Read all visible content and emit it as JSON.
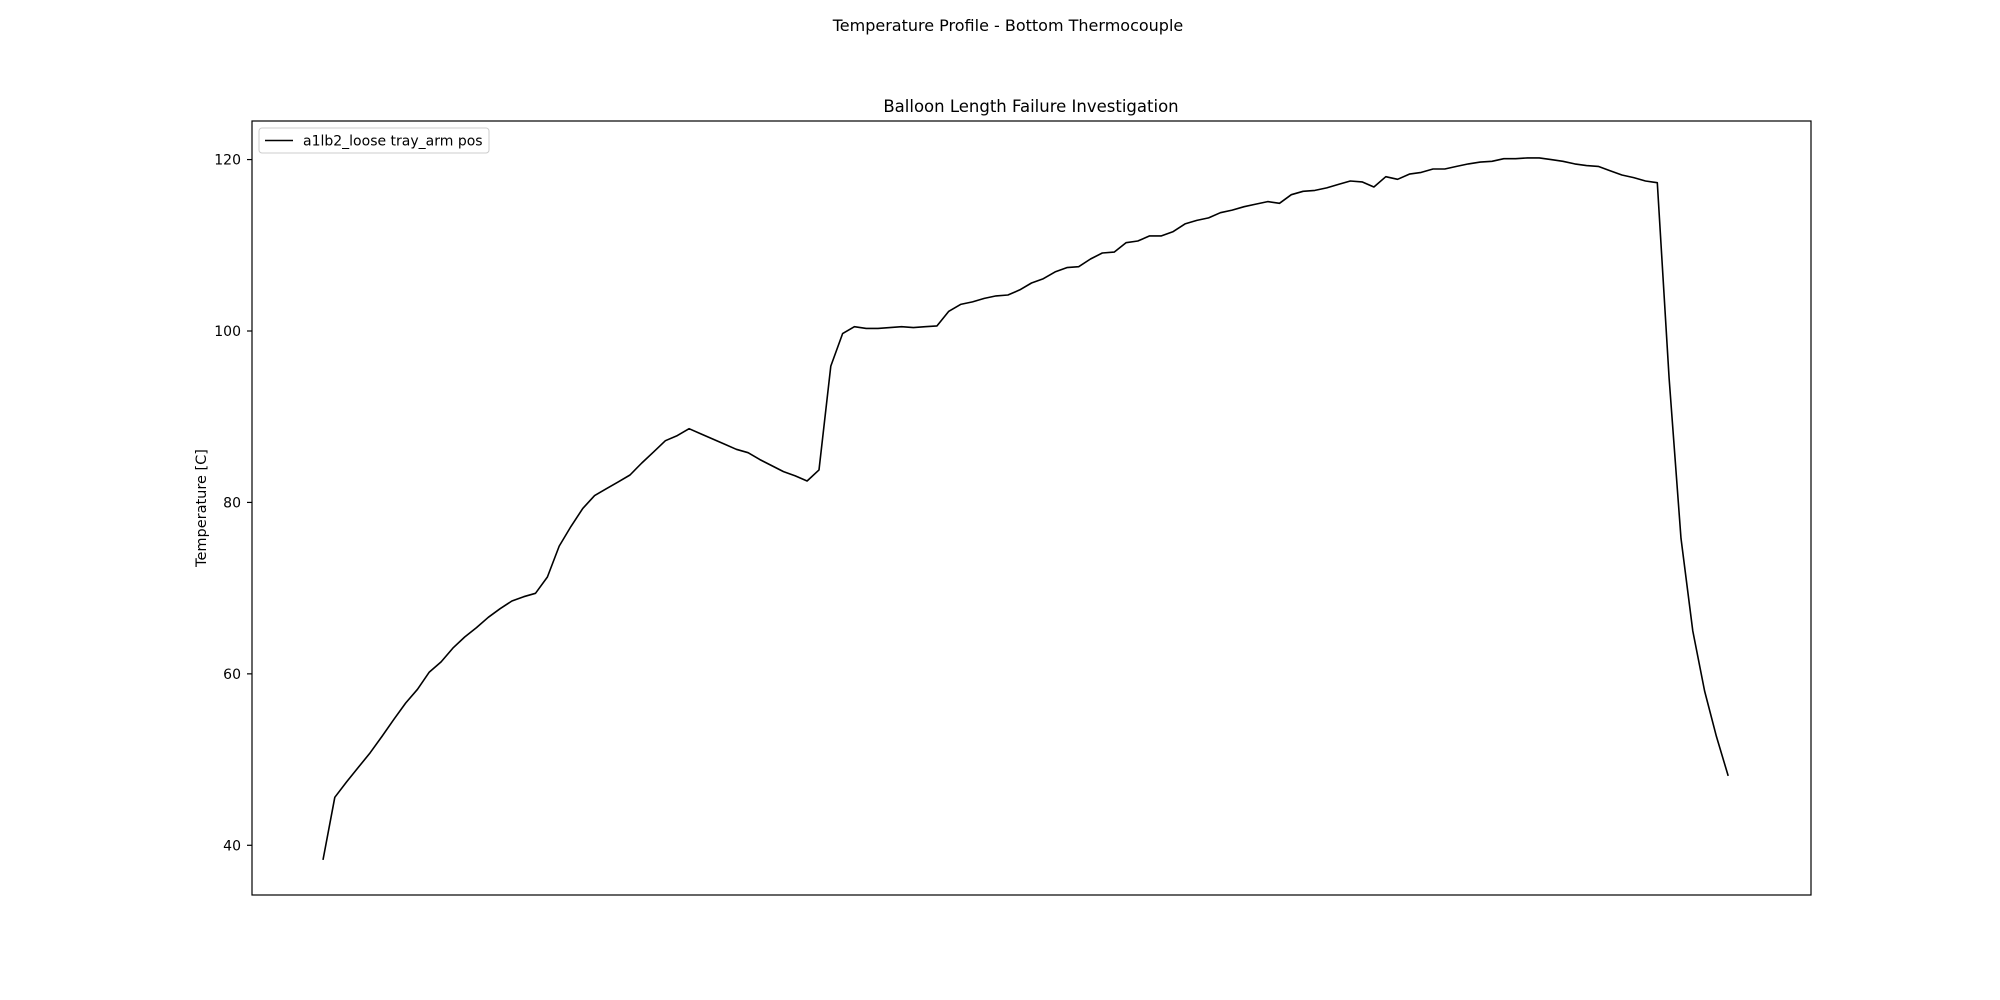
{
  "figure": {
    "suptitle": "Temperature Profile - Bottom Thermocouple"
  },
  "chart_data": {
    "type": "line",
    "title": "Balloon Length Failure Investigation",
    "xlabel": "",
    "ylabel": "Temperature [C]",
    "xticks_visible": false,
    "ylim": [
      34.2,
      124.5
    ],
    "yticks": [
      40,
      60,
      80,
      100,
      120
    ],
    "ytick_labels": [
      "40",
      "60",
      "80",
      "100",
      "120"
    ],
    "grid": false,
    "legend": {
      "position": "top-left",
      "entries": [
        "a1lb2_loose tray_arm pos"
      ]
    },
    "series": [
      {
        "name": "a1lb2_loose tray_arm pos",
        "color": "#000000",
        "x": [
          0,
          1,
          2,
          3,
          4,
          5,
          6,
          7,
          8,
          9,
          10,
          11,
          12,
          13,
          14,
          15,
          16,
          17,
          18,
          19,
          20,
          21,
          22,
          23,
          24,
          25,
          26,
          27,
          28,
          29,
          30,
          31,
          32,
          33,
          34,
          35,
          36,
          37,
          38,
          39,
          40,
          41,
          42,
          43,
          44,
          45,
          46,
          47,
          48,
          49,
          50,
          51,
          52,
          53,
          54,
          55,
          56,
          57,
          58,
          59,
          60,
          61,
          62,
          63,
          64,
          65,
          66,
          67,
          68,
          69,
          70,
          71,
          72,
          73,
          74,
          75,
          76,
          77,
          78,
          79,
          80,
          81,
          82,
          83,
          84,
          85,
          86,
          87,
          88,
          89,
          90,
          91,
          92,
          93,
          94,
          95,
          96,
          97,
          98,
          99,
          100,
          101,
          102,
          103,
          104,
          105,
          106,
          107,
          108,
          109,
          110,
          111,
          112,
          113,
          114,
          115,
          116,
          117,
          118,
          119,
          120
        ],
        "values": [
          38.3,
          45.6,
          47.4,
          49.1,
          50.8,
          52.7,
          54.7,
          56.6,
          58.2,
          60.2,
          61.4,
          63.0,
          64.3,
          65.4,
          66.6,
          67.6,
          68.5,
          69.0,
          69.4,
          71.3,
          74.9,
          77.2,
          79.3,
          80.8,
          81.6,
          82.4,
          83.2,
          84.6,
          85.9,
          87.2,
          87.8,
          88.6,
          88.0,
          87.4,
          86.8,
          86.2,
          85.8,
          85.0,
          84.3,
          83.6,
          83.1,
          82.5,
          83.8,
          95.9,
          99.7,
          100.5,
          100.3,
          100.3,
          100.4,
          100.5,
          100.4,
          100.5,
          100.6,
          102.3,
          103.1,
          103.4,
          103.8,
          104.1,
          104.2,
          104.8,
          105.6,
          106.1,
          106.9,
          107.4,
          107.5,
          108.4,
          109.1,
          109.2,
          110.3,
          110.5,
          111.1,
          111.1,
          111.6,
          112.5,
          112.9,
          113.2,
          113.8,
          114.1,
          114.5,
          114.8,
          115.1,
          114.9,
          115.9,
          116.3,
          116.4,
          116.7,
          117.1,
          117.5,
          117.4,
          116.8,
          118.0,
          117.7,
          118.3,
          118.5,
          118.9,
          118.9,
          119.2,
          119.5,
          119.7,
          119.8,
          120.1,
          120.1,
          120.2,
          120.2,
          120.0,
          119.8,
          119.5,
          119.3,
          119.2,
          118.7,
          118.2,
          117.9,
          117.5,
          117.3,
          94.5,
          75.8,
          65.0,
          58.0,
          52.7,
          48.1,
          null
        ]
      }
    ]
  }
}
